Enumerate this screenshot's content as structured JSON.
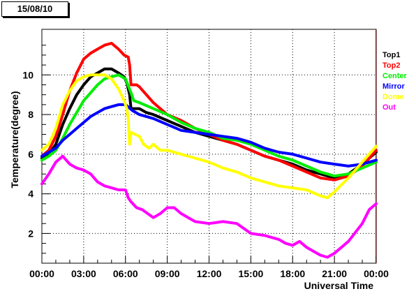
{
  "chart_data": {
    "type": "line",
    "title": "15/08/10",
    "xlabel": "Universal Time",
    "ylabel": "Temperature(degree)",
    "xlim": [
      0,
      24
    ],
    "ylim": [
      0.5,
      12.3
    ],
    "grid": true,
    "legend_placement": "right",
    "x_ticks": [
      "00:00",
      "03:00",
      "06:00",
      "09:00",
      "12:00",
      "15:00",
      "18:00",
      "21:00",
      "00:00"
    ],
    "x_tick_hours": [
      0,
      3,
      6,
      9,
      12,
      15,
      18,
      21,
      24
    ],
    "y_ticks": [
      2,
      4,
      6,
      8,
      10
    ],
    "series": [
      {
        "name": "Top1",
        "color": "#000000",
        "points": [
          [
            0,
            5.8
          ],
          [
            0.5,
            6.0
          ],
          [
            1,
            6.5
          ],
          [
            1.5,
            7.5
          ],
          [
            2,
            8.3
          ],
          [
            2.5,
            9.0
          ],
          [
            3,
            9.5
          ],
          [
            3.5,
            9.9
          ],
          [
            4,
            10.1
          ],
          [
            4.5,
            10.3
          ],
          [
            5,
            10.3
          ],
          [
            5.5,
            10.1
          ],
          [
            5.9,
            9.9
          ],
          [
            6.1,
            9.6
          ],
          [
            6.3,
            9.0
          ],
          [
            6.4,
            8.3
          ],
          [
            7,
            8.3
          ],
          [
            7.5,
            8.1
          ],
          [
            8,
            8.0
          ],
          [
            9,
            7.7
          ],
          [
            10,
            7.4
          ],
          [
            11,
            7.1
          ],
          [
            12,
            6.9
          ],
          [
            13,
            6.7
          ],
          [
            14,
            6.5
          ],
          [
            15,
            6.2
          ],
          [
            16,
            5.9
          ],
          [
            17,
            5.7
          ],
          [
            18,
            5.5
          ],
          [
            19,
            5.2
          ],
          [
            20,
            5.0
          ],
          [
            21,
            4.8
          ],
          [
            22,
            5.0
          ],
          [
            23,
            5.5
          ],
          [
            24,
            6.1
          ]
        ]
      },
      {
        "name": "Top2",
        "color": "#ff0000",
        "points": [
          [
            0,
            5.9
          ],
          [
            0.5,
            6.2
          ],
          [
            1,
            6.9
          ],
          [
            1.5,
            8.0
          ],
          [
            2,
            9.2
          ],
          [
            2.5,
            10.1
          ],
          [
            3,
            10.8
          ],
          [
            3.5,
            11.1
          ],
          [
            4,
            11.3
          ],
          [
            4.5,
            11.5
          ],
          [
            5,
            11.6
          ],
          [
            5.5,
            11.3
          ],
          [
            5.9,
            11.0
          ],
          [
            6.2,
            10.9
          ],
          [
            6.3,
            10.5
          ],
          [
            6.4,
            9.5
          ],
          [
            6.8,
            9.5
          ],
          [
            7,
            9.4
          ],
          [
            7.5,
            9.0
          ],
          [
            8,
            8.6
          ],
          [
            9,
            8.0
          ],
          [
            10,
            7.7
          ],
          [
            11,
            7.3
          ],
          [
            12,
            7.0
          ],
          [
            13,
            6.7
          ],
          [
            14,
            6.5
          ],
          [
            15,
            6.2
          ],
          [
            16,
            5.9
          ],
          [
            17,
            5.7
          ],
          [
            18,
            5.4
          ],
          [
            19,
            5.1
          ],
          [
            20,
            4.8
          ],
          [
            21,
            4.7
          ],
          [
            22,
            4.9
          ],
          [
            23,
            5.4
          ],
          [
            24,
            6.2
          ]
        ]
      },
      {
        "name": "Center",
        "color": "#00ee00",
        "points": [
          [
            0,
            5.7
          ],
          [
            0.5,
            5.9
          ],
          [
            1,
            6.2
          ],
          [
            1.5,
            6.8
          ],
          [
            2,
            7.5
          ],
          [
            2.5,
            8.1
          ],
          [
            3,
            8.7
          ],
          [
            3.5,
            9.1
          ],
          [
            4,
            9.5
          ],
          [
            4.5,
            9.8
          ],
          [
            5,
            9.9
          ],
          [
            5.5,
            10.0
          ],
          [
            6,
            9.8
          ],
          [
            6.4,
            9.1
          ],
          [
            6.6,
            8.7
          ],
          [
            7,
            8.6
          ],
          [
            8,
            8.3
          ],
          [
            9,
            8.0
          ],
          [
            10,
            7.6
          ],
          [
            11,
            7.3
          ],
          [
            12,
            7.1
          ],
          [
            13,
            6.8
          ],
          [
            14,
            6.7
          ],
          [
            15,
            6.5
          ],
          [
            16,
            6.2
          ],
          [
            17,
            5.9
          ],
          [
            18,
            5.7
          ],
          [
            19,
            5.4
          ],
          [
            20,
            5.1
          ],
          [
            21,
            4.9
          ],
          [
            22,
            5.0
          ],
          [
            23,
            5.3
          ],
          [
            24,
            5.6
          ]
        ]
      },
      {
        "name": "Mirror",
        "color": "#0000ff",
        "points": [
          [
            0,
            5.9
          ],
          [
            0.5,
            6.1
          ],
          [
            1,
            6.3
          ],
          [
            1.5,
            6.7
          ],
          [
            2,
            7.0
          ],
          [
            2.5,
            7.3
          ],
          [
            3,
            7.6
          ],
          [
            3.5,
            7.9
          ],
          [
            4,
            8.1
          ],
          [
            4.5,
            8.3
          ],
          [
            5,
            8.4
          ],
          [
            5.5,
            8.5
          ],
          [
            6,
            8.5
          ],
          [
            6.5,
            8.2
          ],
          [
            7,
            8.0
          ],
          [
            8,
            7.8
          ],
          [
            9,
            7.5
          ],
          [
            10,
            7.2
          ],
          [
            11,
            7.1
          ],
          [
            12,
            7.0
          ],
          [
            13,
            6.9
          ],
          [
            14,
            6.8
          ],
          [
            15,
            6.6
          ],
          [
            16,
            6.3
          ],
          [
            17,
            6.1
          ],
          [
            18,
            6.0
          ],
          [
            19,
            5.8
          ],
          [
            20,
            5.6
          ],
          [
            21,
            5.5
          ],
          [
            22,
            5.4
          ],
          [
            23,
            5.5
          ],
          [
            24,
            5.7
          ]
        ]
      },
      {
        "name": "Dome",
        "color": "#ffff00",
        "points": [
          [
            0,
            6.2
          ],
          [
            0.5,
            6.5
          ],
          [
            1,
            7.3
          ],
          [
            1.5,
            8.5
          ],
          [
            2,
            9.2
          ],
          [
            2.5,
            9.7
          ],
          [
            3,
            9.9
          ],
          [
            3.5,
            10.0
          ],
          [
            4,
            10.0
          ],
          [
            4.5,
            10.0
          ],
          [
            5,
            9.8
          ],
          [
            5.5,
            9.3
          ],
          [
            5.9,
            8.7
          ],
          [
            6.1,
            8.3
          ],
          [
            6.2,
            7.8
          ],
          [
            6.3,
            6.5
          ],
          [
            6.4,
            7.1
          ],
          [
            6.7,
            7.0
          ],
          [
            7,
            6.9
          ],
          [
            7.3,
            6.5
          ],
          [
            7.7,
            6.3
          ],
          [
            8,
            6.5
          ],
          [
            8.5,
            6.2
          ],
          [
            9,
            6.2
          ],
          [
            10,
            6.0
          ],
          [
            11,
            5.8
          ],
          [
            12,
            5.6
          ],
          [
            13,
            5.3
          ],
          [
            14,
            5.1
          ],
          [
            15,
            4.8
          ],
          [
            16,
            4.6
          ],
          [
            17,
            4.4
          ],
          [
            18,
            4.3
          ],
          [
            19,
            4.2
          ],
          [
            20,
            3.9
          ],
          [
            20.5,
            3.8
          ],
          [
            21,
            4.1
          ],
          [
            22,
            4.8
          ],
          [
            23,
            5.6
          ],
          [
            24,
            6.4
          ]
        ]
      },
      {
        "name": "Out",
        "color": "#ff00ff",
        "points": [
          [
            0,
            4.5
          ],
          [
            0.5,
            5.0
          ],
          [
            1,
            5.6
          ],
          [
            1.5,
            5.9
          ],
          [
            2,
            5.5
          ],
          [
            2.5,
            5.3
          ],
          [
            3,
            5.2
          ],
          [
            3.5,
            5.0
          ],
          [
            4,
            4.6
          ],
          [
            4.5,
            4.4
          ],
          [
            5,
            4.3
          ],
          [
            5.5,
            4.2
          ],
          [
            6,
            4.2
          ],
          [
            6.2,
            3.8
          ],
          [
            6.4,
            3.6
          ],
          [
            6.8,
            3.3
          ],
          [
            7.2,
            3.2
          ],
          [
            7.6,
            3.0
          ],
          [
            8,
            2.8
          ],
          [
            8.5,
            3.0
          ],
          [
            9,
            3.3
          ],
          [
            9.5,
            3.3
          ],
          [
            10,
            3.0
          ],
          [
            10.5,
            2.8
          ],
          [
            11,
            2.6
          ],
          [
            12,
            2.5
          ],
          [
            13,
            2.6
          ],
          [
            14,
            2.5
          ],
          [
            15,
            2.0
          ],
          [
            16,
            1.9
          ],
          [
            17,
            1.7
          ],
          [
            17.5,
            1.5
          ],
          [
            18,
            1.4
          ],
          [
            18.5,
            1.6
          ],
          [
            19,
            1.3
          ],
          [
            19.5,
            1.1
          ],
          [
            20,
            0.9
          ],
          [
            20.5,
            0.8
          ],
          [
            21,
            1.0
          ],
          [
            21.5,
            1.3
          ],
          [
            22,
            1.6
          ],
          [
            23,
            2.5
          ],
          [
            23.5,
            3.2
          ],
          [
            24,
            3.5
          ]
        ]
      }
    ]
  }
}
